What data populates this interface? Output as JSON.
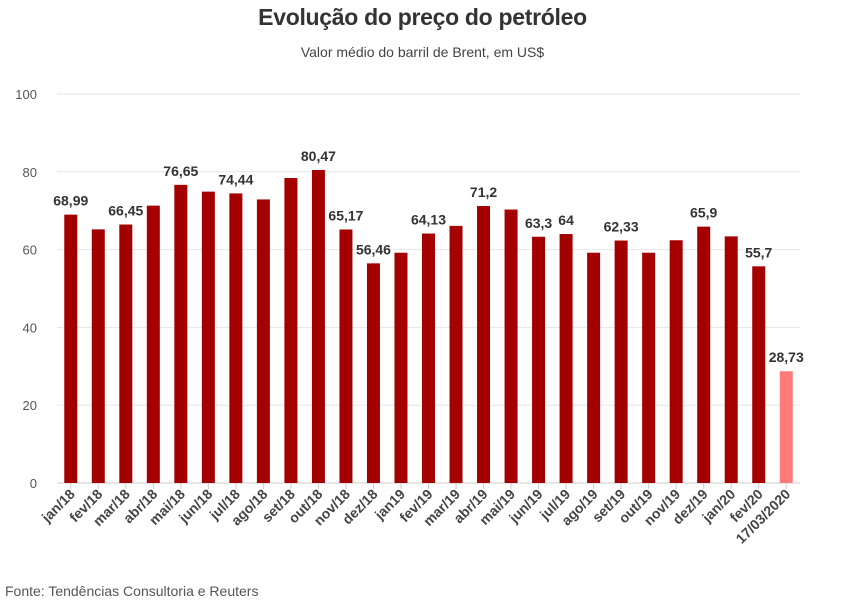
{
  "chart_data": {
    "type": "bar",
    "title": "Evolução do preço do petróleo",
    "subtitle": "Valor médio do barril de Brent, em US$",
    "ylim": [
      0,
      100
    ],
    "yticks": [
      0,
      20,
      40,
      60,
      80,
      100
    ],
    "grid": true,
    "categories": [
      "jan/18",
      "fev/18",
      "mar/18",
      "abr/18",
      "mai/18",
      "jun/18",
      "jul/18",
      "ago/18",
      "set/18",
      "out/18",
      "nov/18",
      "dez/18",
      "jan19",
      "fev/19",
      "mar/19",
      "abr/19",
      "mai/19",
      "jun/19",
      "jul/19",
      "ago/19",
      "set/19",
      "out/19",
      "nov/19",
      "dez/19",
      "jan/20",
      "fev/20",
      "17/03/2020"
    ],
    "values": [
      68.99,
      65.2,
      66.45,
      71.3,
      76.65,
      74.9,
      74.44,
      72.9,
      78.4,
      80.47,
      65.17,
      56.46,
      59.2,
      64.13,
      66.1,
      71.2,
      70.3,
      63.3,
      64,
      59.2,
      62.33,
      59.2,
      62.4,
      65.9,
      63.4,
      55.7,
      28.73
    ],
    "data_labels": [
      "68,99",
      "",
      "66,45",
      "",
      "76,65",
      "",
      "74,44",
      "",
      "",
      "80,47",
      "65,17",
      "56,46",
      "",
      "64,13",
      "",
      "71,2",
      "",
      "63,3",
      "64",
      "",
      "62,33",
      "",
      "",
      "65,9",
      "",
      "55,7",
      "28,73"
    ],
    "colors": {
      "bar": "#A50000",
      "highlight": "#FF7A7A",
      "grid": "#E6E6E6",
      "axis": "#CCCCCC"
    },
    "highlight_index": 26
  },
  "source": "Fonte: Tendências Consultoria e Reuters"
}
